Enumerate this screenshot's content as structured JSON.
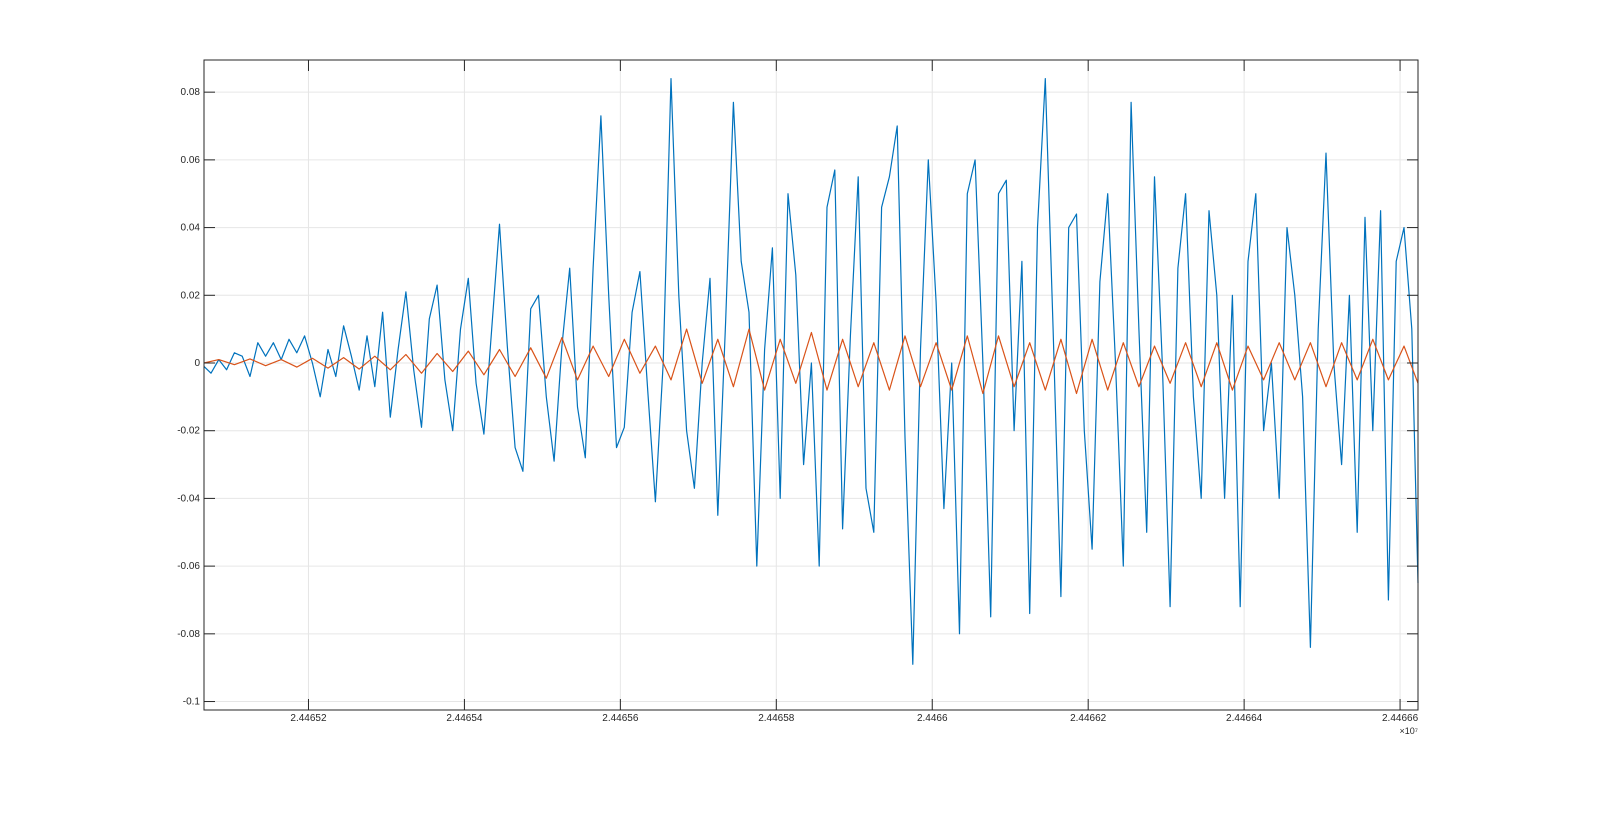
{
  "chart_data": {
    "type": "line",
    "title": "",
    "xlabel": "",
    "ylabel": "",
    "xlim": [
      24465066,
      24466623
    ],
    "ylim": [
      -0.1025,
      0.0895
    ],
    "grid": true,
    "legend": "none",
    "x_exponent_label": "×10⁷",
    "x_ticks": [
      {
        "value": 24465200,
        "label": "2.44652"
      },
      {
        "value": 24465400,
        "label": "2.44654"
      },
      {
        "value": 24465600,
        "label": "2.44656"
      },
      {
        "value": 24465800,
        "label": "2.44658"
      },
      {
        "value": 24466000,
        "label": "2.4466"
      },
      {
        "value": 24466200,
        "label": "2.44662"
      },
      {
        "value": 24466400,
        "label": "2.44664"
      },
      {
        "value": 24466600,
        "label": "2.44666"
      }
    ],
    "y_ticks": [
      {
        "value": 0.08,
        "label": "0.08"
      },
      {
        "value": 0.06,
        "label": "0.06"
      },
      {
        "value": 0.04,
        "label": "0.04"
      },
      {
        "value": 0.02,
        "label": "0.02"
      },
      {
        "value": 0,
        "label": "0"
      },
      {
        "value": -0.02,
        "label": "-0.02"
      },
      {
        "value": -0.04,
        "label": "-0.04"
      },
      {
        "value": -0.06,
        "label": "-0.06"
      },
      {
        "value": -0.08,
        "label": "-0.08"
      },
      {
        "value": -0.1,
        "label": "-0.1"
      }
    ],
    "series": [
      {
        "color": "#0072BD",
        "points": [
          [
            24465066,
            -0.001
          ],
          [
            24465075,
            -0.003
          ],
          [
            24465085,
            0.001
          ],
          [
            24465095,
            -0.002
          ],
          [
            24465105,
            0.003
          ],
          [
            24465115,
            0.002
          ],
          [
            24465125,
            -0.004
          ],
          [
            24465135,
            0.006
          ],
          [
            24465145,
            0.002
          ],
          [
            24465155,
            0.006
          ],
          [
            24465165,
            0.001
          ],
          [
            24465175,
            0.007
          ],
          [
            24465185,
            0.003
          ],
          [
            24465195,
            0.008
          ],
          [
            24465205,
            0.0
          ],
          [
            24465215,
            -0.01
          ],
          [
            24465225,
            0.004
          ],
          [
            24465235,
            -0.004
          ],
          [
            24465245,
            0.011
          ],
          [
            24465255,
            0.002
          ],
          [
            24465265,
            -0.008
          ],
          [
            24465275,
            0.008
          ],
          [
            24465285,
            -0.007
          ],
          [
            24465295,
            0.015
          ],
          [
            24465305,
            -0.016
          ],
          [
            24465315,
            0.004
          ],
          [
            24465325,
            0.021
          ],
          [
            24465335,
            -0.002
          ],
          [
            24465345,
            -0.019
          ],
          [
            24465355,
            0.013
          ],
          [
            24465365,
            0.023
          ],
          [
            24465375,
            -0.005
          ],
          [
            24465385,
            -0.02
          ],
          [
            24465395,
            0.01
          ],
          [
            24465405,
            0.025
          ],
          [
            24465415,
            -0.006
          ],
          [
            24465425,
            -0.021
          ],
          [
            24465435,
            0.01
          ],
          [
            24465445,
            0.041
          ],
          [
            24465455,
            0.005
          ],
          [
            24465465,
            -0.025
          ],
          [
            24465475,
            -0.032
          ],
          [
            24465485,
            0.016
          ],
          [
            24465495,
            0.02
          ],
          [
            24465505,
            -0.01
          ],
          [
            24465515,
            -0.029
          ],
          [
            24465525,
            0.005
          ],
          [
            24465535,
            0.028
          ],
          [
            24465545,
            -0.013
          ],
          [
            24465555,
            -0.028
          ],
          [
            24465565,
            0.028
          ],
          [
            24465575,
            0.073
          ],
          [
            24465585,
            0.02
          ],
          [
            24465595,
            -0.025
          ],
          [
            24465605,
            -0.019
          ],
          [
            24465615,
            0.015
          ],
          [
            24465625,
            0.027
          ],
          [
            24465635,
            -0.008
          ],
          [
            24465645,
            -0.041
          ],
          [
            24465655,
            0.0
          ],
          [
            24465665,
            0.084
          ],
          [
            24465675,
            0.02
          ],
          [
            24465685,
            -0.02
          ],
          [
            24465695,
            -0.037
          ],
          [
            24465705,
            0.0
          ],
          [
            24465715,
            0.025
          ],
          [
            24465725,
            -0.045
          ],
          [
            24465735,
            0.012
          ],
          [
            24465745,
            0.077
          ],
          [
            24465755,
            0.03
          ],
          [
            24465765,
            0.015
          ],
          [
            24465775,
            -0.06
          ],
          [
            24465785,
            0.004
          ],
          [
            24465795,
            0.034
          ],
          [
            24465805,
            -0.04
          ],
          [
            24465815,
            0.05
          ],
          [
            24465825,
            0.026
          ],
          [
            24465835,
            -0.03
          ],
          [
            24465845,
            0.0
          ],
          [
            24465855,
            -0.06
          ],
          [
            24465865,
            0.046
          ],
          [
            24465875,
            0.057
          ],
          [
            24465885,
            -0.049
          ],
          [
            24465895,
            0.008
          ],
          [
            24465905,
            0.055
          ],
          [
            24465915,
            -0.037
          ],
          [
            24465925,
            -0.05
          ],
          [
            24465935,
            0.046
          ],
          [
            24465945,
            0.055
          ],
          [
            24465955,
            0.07
          ],
          [
            24465965,
            -0.022
          ],
          [
            24465975,
            -0.089
          ],
          [
            24465985,
            0.004
          ],
          [
            24465995,
            0.06
          ],
          [
            24466005,
            0.018
          ],
          [
            24466015,
            -0.043
          ],
          [
            24466025,
            0.0
          ],
          [
            24466035,
            -0.08
          ],
          [
            24466045,
            0.05
          ],
          [
            24466055,
            0.06
          ],
          [
            24466065,
            0.0
          ],
          [
            24466075,
            -0.075
          ],
          [
            24466085,
            0.05
          ],
          [
            24466095,
            0.054
          ],
          [
            24466105,
            -0.02
          ],
          [
            24466115,
            0.03
          ],
          [
            24466125,
            -0.074
          ],
          [
            24466135,
            0.04
          ],
          [
            24466145,
            0.084
          ],
          [
            24466155,
            0.01
          ],
          [
            24466165,
            -0.069
          ],
          [
            24466175,
            0.04
          ],
          [
            24466185,
            0.044
          ],
          [
            24466195,
            -0.02
          ],
          [
            24466205,
            -0.055
          ],
          [
            24466215,
            0.024
          ],
          [
            24466225,
            0.05
          ],
          [
            24466235,
            0.0
          ],
          [
            24466245,
            -0.06
          ],
          [
            24466255,
            0.077
          ],
          [
            24466265,
            0.01
          ],
          [
            24466275,
            -0.05
          ],
          [
            24466285,
            0.055
          ],
          [
            24466295,
            0.0
          ],
          [
            24466305,
            -0.072
          ],
          [
            24466315,
            0.028
          ],
          [
            24466325,
            0.05
          ],
          [
            24466335,
            -0.01
          ],
          [
            24466345,
            -0.04
          ],
          [
            24466355,
            0.045
          ],
          [
            24466365,
            0.02
          ],
          [
            24466375,
            -0.04
          ],
          [
            24466385,
            0.02
          ],
          [
            24466395,
            -0.072
          ],
          [
            24466405,
            0.03
          ],
          [
            24466415,
            0.05
          ],
          [
            24466425,
            -0.02
          ],
          [
            24466435,
            0.0
          ],
          [
            24466445,
            -0.04
          ],
          [
            24466455,
            0.04
          ],
          [
            24466465,
            0.02
          ],
          [
            24466475,
            -0.01
          ],
          [
            24466485,
            -0.084
          ],
          [
            24466495,
            0.01
          ],
          [
            24466505,
            0.062
          ],
          [
            24466515,
            0.0
          ],
          [
            24466525,
            -0.03
          ],
          [
            24466535,
            0.02
          ],
          [
            24466545,
            -0.05
          ],
          [
            24466555,
            0.043
          ],
          [
            24466565,
            -0.02
          ],
          [
            24466575,
            0.045
          ],
          [
            24466585,
            -0.07
          ],
          [
            24466595,
            0.03
          ],
          [
            24466605,
            0.04
          ],
          [
            24466615,
            0.01
          ],
          [
            24466623,
            -0.065
          ]
        ]
      },
      {
        "color": "#D95319",
        "points": [
          [
            24465066,
            0.0
          ],
          [
            24465085,
            0.001
          ],
          [
            24465105,
            -0.0005
          ],
          [
            24465125,
            0.0012
          ],
          [
            24465145,
            -0.0008
          ],
          [
            24465165,
            0.001
          ],
          [
            24465185,
            -0.0012
          ],
          [
            24465205,
            0.0014
          ],
          [
            24465225,
            -0.0015
          ],
          [
            24465245,
            0.0016
          ],
          [
            24465265,
            -0.0018
          ],
          [
            24465285,
            0.002
          ],
          [
            24465305,
            -0.002
          ],
          [
            24465325,
            0.0025
          ],
          [
            24465345,
            -0.003
          ],
          [
            24465365,
            0.0028
          ],
          [
            24465385,
            -0.0025
          ],
          [
            24465405,
            0.0035
          ],
          [
            24465425,
            -0.0035
          ],
          [
            24465445,
            0.004
          ],
          [
            24465465,
            -0.004
          ],
          [
            24465485,
            0.0045
          ],
          [
            24465505,
            -0.0045
          ],
          [
            24465525,
            0.0075
          ],
          [
            24465545,
            -0.005
          ],
          [
            24465565,
            0.005
          ],
          [
            24465585,
            -0.004
          ],
          [
            24465605,
            0.007
          ],
          [
            24465625,
            -0.003
          ],
          [
            24465645,
            0.005
          ],
          [
            24465665,
            -0.005
          ],
          [
            24465685,
            0.01
          ],
          [
            24465705,
            -0.006
          ],
          [
            24465725,
            0.007
          ],
          [
            24465745,
            -0.007
          ],
          [
            24465765,
            0.01
          ],
          [
            24465785,
            -0.008
          ],
          [
            24465805,
            0.007
          ],
          [
            24465825,
            -0.006
          ],
          [
            24465845,
            0.009
          ],
          [
            24465865,
            -0.008
          ],
          [
            24465885,
            0.007
          ],
          [
            24465905,
            -0.007
          ],
          [
            24465925,
            0.006
          ],
          [
            24465945,
            -0.008
          ],
          [
            24465965,
            0.008
          ],
          [
            24465985,
            -0.007
          ],
          [
            24466005,
            0.006
          ],
          [
            24466025,
            -0.008
          ],
          [
            24466045,
            0.008
          ],
          [
            24466065,
            -0.009
          ],
          [
            24466085,
            0.008
          ],
          [
            24466105,
            -0.007
          ],
          [
            24466125,
            0.006
          ],
          [
            24466145,
            -0.008
          ],
          [
            24466165,
            0.007
          ],
          [
            24466185,
            -0.009
          ],
          [
            24466205,
            0.007
          ],
          [
            24466225,
            -0.008
          ],
          [
            24466245,
            0.006
          ],
          [
            24466265,
            -0.007
          ],
          [
            24466285,
            0.005
          ],
          [
            24466305,
            -0.006
          ],
          [
            24466325,
            0.006
          ],
          [
            24466345,
            -0.007
          ],
          [
            24466365,
            0.006
          ],
          [
            24466385,
            -0.008
          ],
          [
            24466405,
            0.005
          ],
          [
            24466425,
            -0.005
          ],
          [
            24466445,
            0.006
          ],
          [
            24466465,
            -0.005
          ],
          [
            24466485,
            0.006
          ],
          [
            24466505,
            -0.007
          ],
          [
            24466525,
            0.006
          ],
          [
            24466545,
            -0.005
          ],
          [
            24466565,
            0.007
          ],
          [
            24466585,
            -0.005
          ],
          [
            24466605,
            0.005
          ],
          [
            24466623,
            -0.006
          ]
        ]
      }
    ]
  }
}
